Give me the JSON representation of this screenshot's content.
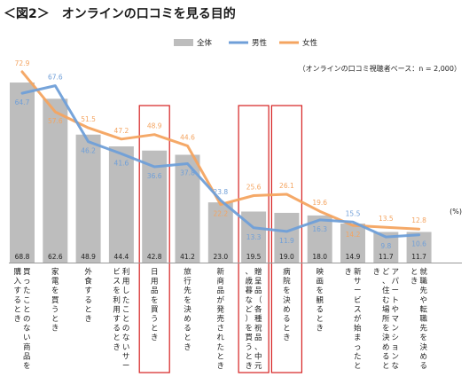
{
  "chart_data": {
    "type": "bar",
    "title": "＜図2＞　オンラインの口コミを見る目的",
    "note": "（オンラインの口コミ視聴者ベース：n = 2,000）",
    "unit": "(%)",
    "categories": [
      "買ったことのない商品を購入するとき",
      "家電を買うとき",
      "外食するとき",
      "利用したことのないサービスを利用するとき",
      "日用品を買うとき",
      "旅行先を決めるとき",
      "新商品が発売されたとき",
      "贈呈品（各種祝品、中元、歳暮など）を買うとき",
      "病院を決めるとき",
      "映画を観るとき",
      "新サービスが始まったとき",
      "アパートやマンションなど、住む場所を決めるとき",
      "就職先や転職先を決めるとき"
    ],
    "series": [
      {
        "name": "全体",
        "type": "bar",
        "color": "#bdbdbd",
        "values": [
          68.8,
          62.6,
          48.9,
          44.4,
          42.8,
          41.2,
          23.0,
          19.5,
          19.0,
          18.0,
          14.9,
          11.7,
          11.7
        ]
      },
      {
        "name": "男性",
        "type": "line",
        "color": "#6f9fd8",
        "values": [
          64.7,
          67.6,
          46.2,
          41.6,
          36.6,
          37.8,
          23.8,
          13.3,
          11.9,
          16.3,
          15.5,
          9.8,
          10.6
        ]
      },
      {
        "name": "女性",
        "type": "line",
        "color": "#f4a460",
        "values": [
          72.9,
          57.6,
          51.5,
          47.2,
          48.9,
          44.6,
          22.2,
          25.6,
          26.1,
          19.6,
          14.2,
          13.5,
          12.8
        ]
      }
    ],
    "highlighted_categories": [
      4,
      7,
      8
    ],
    "highlight_color": "#d62020",
    "ylim": [
      0,
      80
    ],
    "grid": false,
    "legend_position": "top-right"
  }
}
